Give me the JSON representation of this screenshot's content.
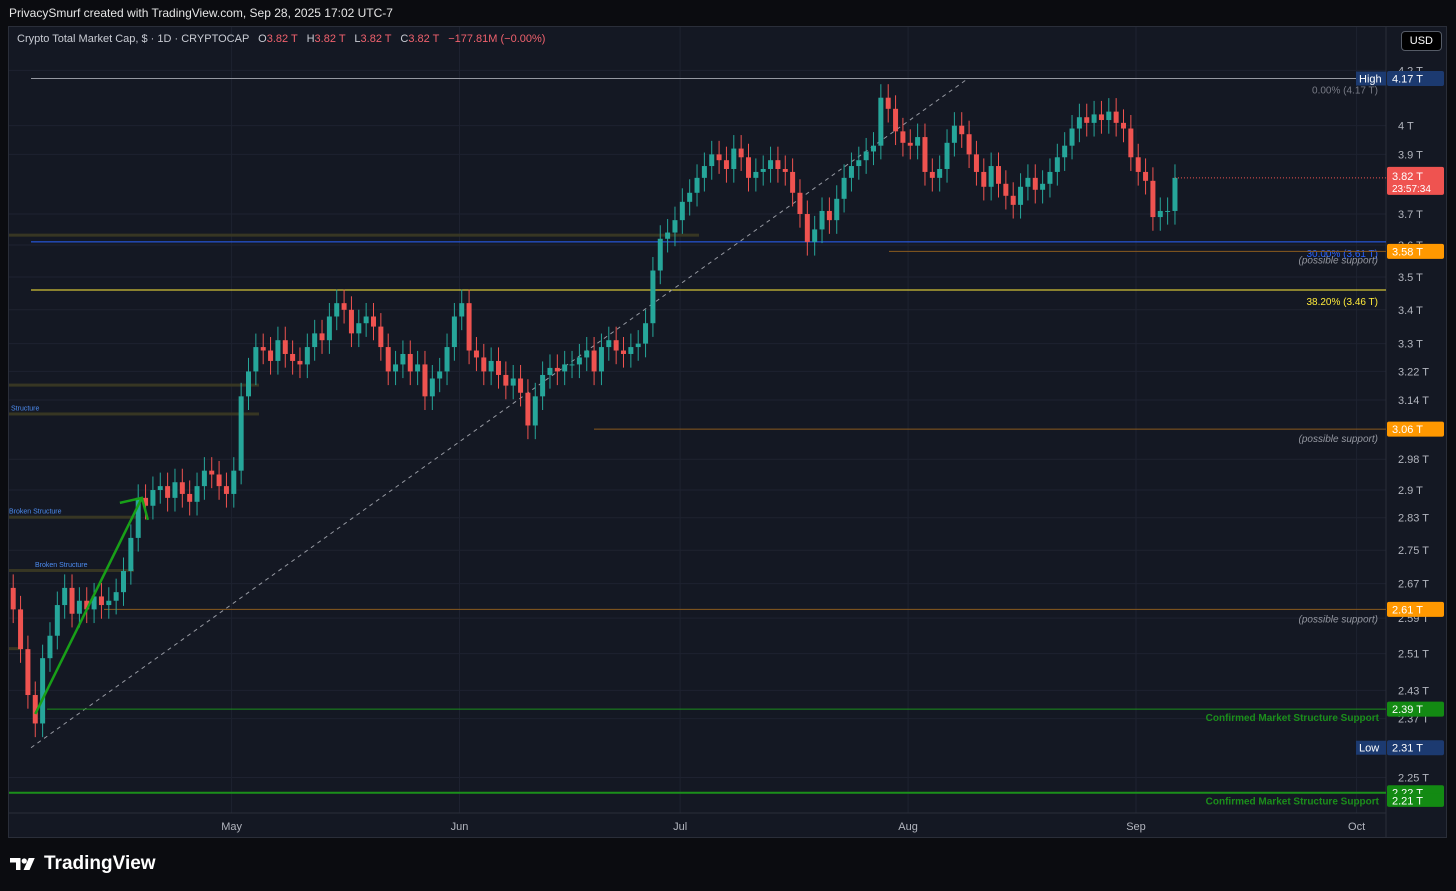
{
  "header": {
    "attribution": "PrivacySmurf created with TradingView.com, Sep 28, 2025 17:02 UTC-7"
  },
  "legend": {
    "symbol": "Crypto Total Market Cap, $ · 1D · CRYPTOCAP",
    "open_label": "O",
    "open": "3.82 T",
    "high_label": "H",
    "high": "3.82 T",
    "low_label": "L",
    "low": "3.82 T",
    "close_label": "C",
    "close": "3.82 T",
    "change": "−177.81M (−0.00%)"
  },
  "currency_button": "USD",
  "brand": {
    "name": "TradingView"
  },
  "colors": {
    "up": "#26a69a",
    "down": "#ef5350",
    "background": "#141823",
    "fib_blue": "#2962ff",
    "fib_yellow": "#ffeb3b",
    "support_orange": "#ff9800",
    "confirmed_green": "#1b8f1b"
  },
  "chart_data": {
    "type": "candlestick",
    "title": "Crypto Total Market Cap, $ · 1D · CRYPTOCAP",
    "x_ticks": [
      "May",
      "Jun",
      "Jul",
      "Aug",
      "Sep",
      "Oct"
    ],
    "y_ticks": [
      "4.2 T",
      "4 T",
      "3.9 T",
      "3.7 T",
      "3.6 T",
      "3.5 T",
      "3.4 T",
      "3.3 T",
      "3.22 T",
      "3.14 T",
      "2.98 T",
      "2.9 T",
      "2.83 T",
      "2.75 T",
      "2.67 T",
      "2.59 T",
      "2.51 T",
      "2.43 T",
      "2.37 T",
      "2.25 T"
    ],
    "y_scale": "log",
    "ylim": [
      2.2,
      4.25
    ],
    "x_range": [
      "2025-04-01",
      "2025-10-05"
    ],
    "last_price": {
      "value": "3.82 T",
      "countdown": "23:57:34"
    },
    "extremes": {
      "high_label": "High",
      "high": "4.17 T",
      "low_label": "Low",
      "low": "2.31 T"
    },
    "price_markers": [
      {
        "value": 3.58,
        "label": "3.58 T",
        "note": "(possible support)"
      },
      {
        "value": 3.06,
        "label": "3.06 T",
        "note": "(possible support)"
      },
      {
        "value": 2.61,
        "label": "2.61 T",
        "note": "(possible support)"
      }
    ],
    "confirmed_supports": [
      {
        "value": 2.39,
        "label": "2.39 T",
        "note": "Confirmed Market Structure Support"
      },
      {
        "value": 2.22,
        "label": "2.22 T",
        "note": "Confirmed Market Structure Support"
      }
    ],
    "lower_axis_label": "2.21 T",
    "fib_levels": [
      {
        "ratio": "0.00% (4.17 T)",
        "value": 4.17
      },
      {
        "ratio": "30.00% (3.61 T)",
        "value": 3.61
      },
      {
        "ratio": "38.20% (3.46 T)",
        "value": 3.46
      }
    ],
    "structure_labels": [
      "Structure",
      "Broken Structure",
      "Broken Structure"
    ],
    "closes": [
      2.61,
      2.52,
      2.42,
      2.36,
      2.5,
      2.55,
      2.62,
      2.66,
      2.6,
      2.63,
      2.61,
      2.64,
      2.62,
      2.63,
      2.65,
      2.7,
      2.78,
      2.88,
      2.86,
      2.9,
      2.91,
      2.88,
      2.92,
      2.89,
      2.87,
      2.91,
      2.95,
      2.94,
      2.91,
      2.89,
      2.95,
      3.15,
      3.22,
      3.29,
      3.28,
      3.25,
      3.31,
      3.27,
      3.25,
      3.24,
      3.29,
      3.33,
      3.31,
      3.38,
      3.42,
      3.4,
      3.33,
      3.36,
      3.38,
      3.35,
      3.29,
      3.22,
      3.24,
      3.27,
      3.22,
      3.24,
      3.15,
      3.2,
      3.22,
      3.29,
      3.38,
      3.42,
      3.28,
      3.26,
      3.22,
      3.25,
      3.21,
      3.18,
      3.2,
      3.16,
      3.07,
      3.15,
      3.21,
      3.23,
      3.22,
      3.24,
      3.24,
      3.26,
      3.28,
      3.22,
      3.29,
      3.31,
      3.28,
      3.27,
      3.29,
      3.3,
      3.36,
      3.52,
      3.62,
      3.64,
      3.68,
      3.74,
      3.77,
      3.82,
      3.86,
      3.9,
      3.88,
      3.85,
      3.92,
      3.89,
      3.82,
      3.84,
      3.85,
      3.88,
      3.85,
      3.84,
      3.77,
      3.7,
      3.61,
      3.65,
      3.71,
      3.68,
      3.75,
      3.82,
      3.86,
      3.88,
      3.91,
      3.93,
      4.1,
      4.06,
      3.98,
      3.94,
      3.93,
      3.96,
      3.84,
      3.82,
      3.85,
      3.94,
      4,
      3.97,
      3.9,
      3.84,
      3.79,
      3.86,
      3.8,
      3.76,
      3.73,
      3.79,
      3.82,
      3.78,
      3.8,
      3.84,
      3.89,
      3.93,
      3.99,
      4.03,
      4.01,
      4.04,
      4.02,
      4.05,
      4.01,
      3.99,
      3.89,
      3.84,
      3.81,
      3.69,
      3.71,
      3.71,
      3.82
    ]
  }
}
